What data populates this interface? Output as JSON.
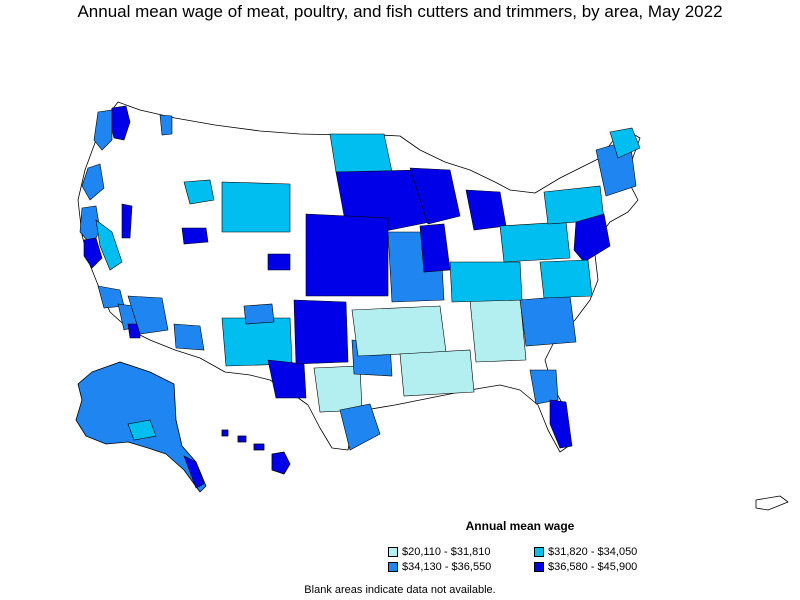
{
  "title": "Annual mean wage of meat, poultry, and fish cutters and trimmers, by area, May 2022",
  "legend": {
    "title": "Annual mean wage",
    "items": [
      {
        "label": "$20,110 - $31,810",
        "color": "#b3eef0"
      },
      {
        "label": "$31,820 - $34,050",
        "color": "#00bff0"
      },
      {
        "label": "$34,130 - $36,550",
        "color": "#1f85f0"
      },
      {
        "label": "$36,580 - $45,900",
        "color": "#0000e8"
      }
    ]
  },
  "footnote": "Blank areas indicate data not available.",
  "colors": {
    "blank": "#ffffff",
    "border": "#000000"
  }
}
